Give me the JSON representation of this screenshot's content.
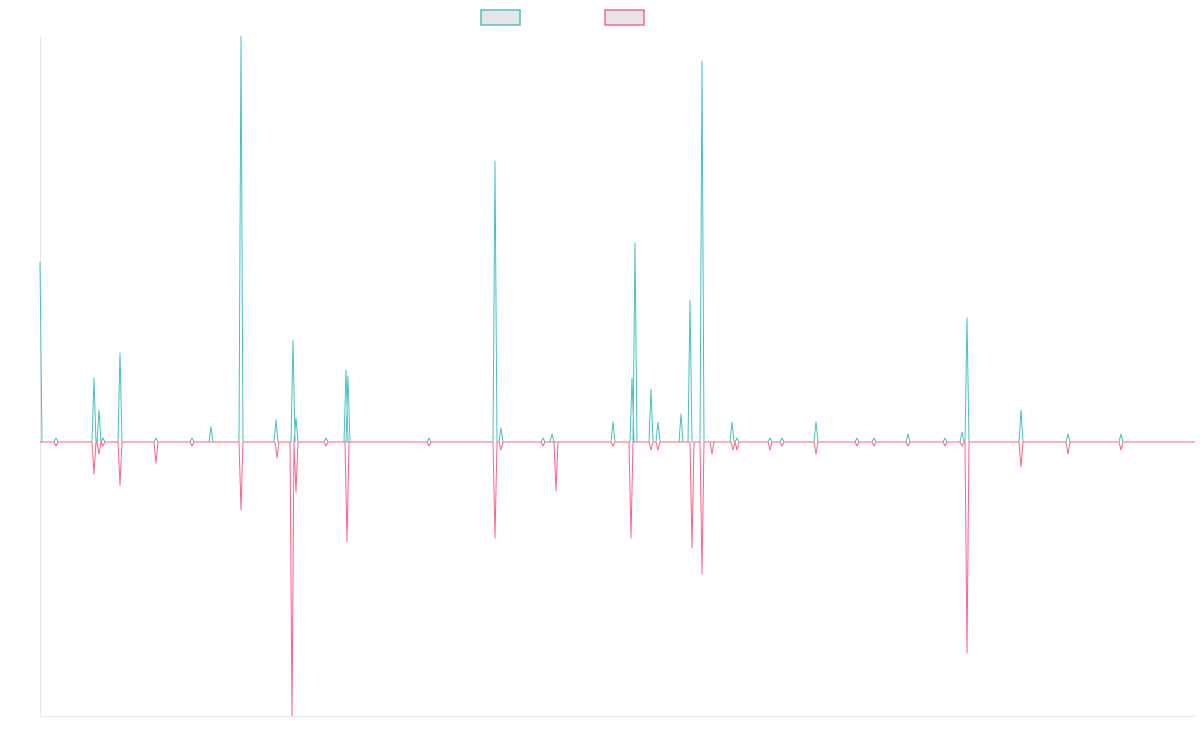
{
  "chart_data": {
    "type": "line",
    "title": "",
    "xlabel": "",
    "ylabel": "",
    "xlim": [
      0,
      1155
    ],
    "ylim": [
      -274,
      406
    ],
    "grid": false,
    "legend_placement": "top-center",
    "baseline": 0,
    "series": [
      {
        "name": "",
        "color": "#4bc0c0",
        "spikes": [
          [
            0,
            180
          ],
          [
            16,
            4
          ],
          [
            54,
            64
          ],
          [
            59,
            32
          ],
          [
            63,
            4
          ],
          [
            80,
            89
          ],
          [
            116,
            4
          ],
          [
            152,
            4
          ],
          [
            171,
            15
          ],
          [
            201,
            406
          ],
          [
            236,
            22
          ],
          [
            253,
            102
          ],
          [
            256,
            24
          ],
          [
            286,
            4
          ],
          [
            306,
            72
          ],
          [
            308,
            66
          ],
          [
            389,
            4
          ],
          [
            455,
            281
          ],
          [
            461,
            14
          ],
          [
            503,
            4
          ],
          [
            512,
            8
          ],
          [
            573,
            20
          ],
          [
            592,
            64
          ],
          [
            595,
            199
          ],
          [
            611,
            53
          ],
          [
            618,
            20
          ],
          [
            641,
            28
          ],
          [
            650,
            142
          ],
          [
            662,
            381
          ],
          [
            692,
            20
          ],
          [
            697,
            4
          ],
          [
            730,
            4
          ],
          [
            742,
            4
          ],
          [
            776,
            20
          ],
          [
            817,
            4
          ],
          [
            834,
            4
          ],
          [
            868,
            8
          ],
          [
            905,
            4
          ],
          [
            922,
            10
          ],
          [
            927,
            124
          ],
          [
            981,
            32
          ],
          [
            1028,
            8
          ],
          [
            1081,
            8
          ]
        ]
      },
      {
        "name": "",
        "color": "#ff6384",
        "spikes": [
          [
            16,
            -4
          ],
          [
            54,
            -32
          ],
          [
            59,
            -12
          ],
          [
            63,
            -4
          ],
          [
            80,
            -43
          ],
          [
            116,
            -21
          ],
          [
            152,
            -4
          ],
          [
            201,
            -68
          ],
          [
            237,
            -16
          ],
          [
            252,
            -274
          ],
          [
            256,
            -50
          ],
          [
            286,
            -4
          ],
          [
            307,
            -100
          ],
          [
            389,
            -4
          ],
          [
            455,
            -96
          ],
          [
            461,
            -8
          ],
          [
            503,
            -4
          ],
          [
            516,
            -49
          ],
          [
            573,
            -4
          ],
          [
            591,
            -96
          ],
          [
            611,
            -8
          ],
          [
            618,
            -8
          ],
          [
            652,
            -106
          ],
          [
            662,
            -132
          ],
          [
            672,
            -12
          ],
          [
            693,
            -8
          ],
          [
            697,
            -8
          ],
          [
            730,
            -8
          ],
          [
            742,
            -4
          ],
          [
            776,
            -12
          ],
          [
            817,
            -4
          ],
          [
            834,
            -4
          ],
          [
            868,
            -4
          ],
          [
            905,
            -4
          ],
          [
            922,
            -4
          ],
          [
            927,
            -211
          ],
          [
            981,
            -25
          ],
          [
            1028,
            -12
          ],
          [
            1081,
            -8
          ]
        ]
      }
    ]
  }
}
